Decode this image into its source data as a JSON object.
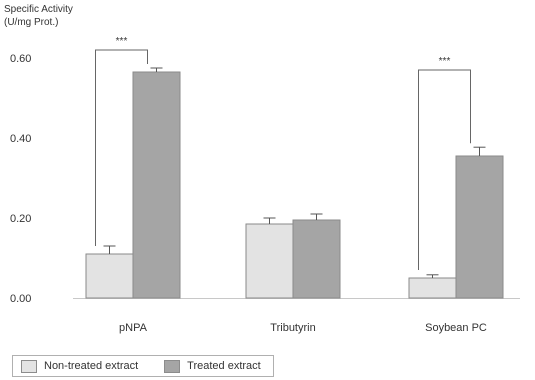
{
  "chart_data": {
    "type": "bar",
    "ylabel_lines": [
      "Specific Activity",
      "(U/mg Prot.)"
    ],
    "xlabel": "",
    "categories": [
      "pNPA",
      "Tributyrin",
      "Soybean PC"
    ],
    "series": [
      {
        "name": "Non-treated extract",
        "color": "#e3e3e3",
        "values": [
          0.11,
          0.185,
          0.05
        ],
        "errors": [
          0.02,
          0.015,
          0.008
        ]
      },
      {
        "name": "Treated extract",
        "color": "#a5a5a5",
        "values": [
          0.565,
          0.195,
          0.355
        ],
        "errors": [
          0.01,
          0.015,
          0.022
        ]
      }
    ],
    "ylim": [
      0,
      0.6
    ],
    "yticks": [
      "0.00",
      "0.20",
      "0.40",
      "0.60"
    ],
    "significance": [
      {
        "category": "pNPA",
        "label": "***"
      },
      {
        "category": "Soybean PC",
        "label": "***"
      }
    ],
    "grid": false,
    "legend_position": "bottom-left"
  }
}
